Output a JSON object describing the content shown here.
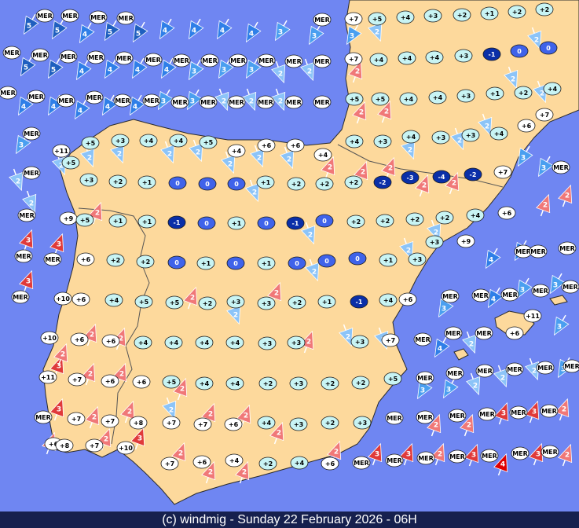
{
  "footer": "(c) windmig - Sunday 22 February 2026 - 06H",
  "markers": [
    "MER",
    "MER",
    "MER",
    "MER",
    "MER",
    "+7",
    "+5",
    "+4",
    "+3",
    "+2",
    "+1",
    "+2",
    "+2",
    "MER",
    "MER",
    "MER",
    "MER",
    "MER",
    "MER",
    "MER",
    "MER",
    "MER",
    "MER",
    "MER",
    "MER",
    "+7",
    "+4",
    "+4",
    "+4",
    "+3",
    "-1",
    "0",
    "0",
    "MER",
    "MER",
    "MER",
    "MER",
    "MER",
    "MER",
    "MER",
    "MER",
    "MER",
    "MER",
    "MER",
    "MER",
    "+5",
    "+5",
    "+4",
    "+4",
    "+3",
    "+1",
    "+2",
    "+4",
    "+7",
    "+6",
    "MER",
    "+11",
    "+5",
    "+3",
    "+4",
    "+4",
    "+5",
    "+4",
    "+6",
    "+6",
    "+4",
    "+4",
    "+3",
    "+4",
    "+3",
    "+3",
    "+4",
    "+5",
    "MER",
    "+3",
    "+2",
    "+1",
    "0",
    "0",
    "0",
    "+1",
    "+2",
    "+2",
    "+2",
    "-2",
    "-3",
    "-4",
    "-2",
    "+7",
    "MER",
    "MER",
    "+9",
    "+5",
    "+1",
    "+1",
    "-1",
    "0",
    "+1",
    "0",
    "-1",
    "0",
    "+2",
    "+2",
    "+2",
    "+2",
    "+4",
    "+6",
    "MER",
    "MER",
    "+6",
    "+2",
    "+2",
    "0",
    "+1",
    "0",
    "+1",
    "0",
    "0",
    "0",
    "+1",
    "+3",
    "+3",
    "+9",
    "MER",
    "MER",
    "MER",
    "MER",
    "+10",
    "+6",
    "+4",
    "+5",
    "+5",
    "+2",
    "+3",
    "+3",
    "+2",
    "+1",
    "-1",
    "+4",
    "+6",
    "MER",
    "MER",
    "MER",
    "MER",
    "MER",
    "+10",
    "+6",
    "+6",
    "+4",
    "+4",
    "+4",
    "+4",
    "+3",
    "+3",
    "+3",
    "+7",
    "MER",
    "MER",
    "MER",
    "+6",
    "+11",
    "+11",
    "+7",
    "+6",
    "+6",
    "+5",
    "+4",
    "+4",
    "+2",
    "+3",
    "+2",
    "+2",
    "+5",
    "MER",
    "MER",
    "MER",
    "MER",
    "MER",
    "MER",
    "MER",
    "+7",
    "+7",
    "+8",
    "+7",
    "+7",
    "+6",
    "+4",
    "+3",
    "+2",
    "+3",
    "MER",
    "MER",
    "MER",
    "MER",
    "MER",
    "MER",
    "+6",
    "+8",
    "+7",
    "+10",
    "+7",
    "+6",
    "+4",
    "+2",
    "+4",
    "+6",
    "MER",
    "MER",
    "MER",
    "MER",
    "MER",
    "MER",
    "MER"
  ],
  "wind_flags": [
    5,
    5,
    4,
    5,
    5,
    4,
    4,
    4,
    4,
    3,
    3,
    3,
    2,
    2,
    5,
    5,
    4,
    4,
    4,
    4,
    3,
    3,
    3,
    2,
    2,
    2,
    2,
    2,
    4,
    4,
    4,
    4,
    4,
    3,
    3,
    2,
    2,
    2,
    2,
    2,
    3,
    2,
    2,
    2,
    2,
    2,
    2,
    2,
    2,
    2,
    2,
    2,
    2,
    2,
    2,
    3,
    3,
    2,
    2,
    2,
    2,
    2,
    2,
    2,
    3,
    3,
    2,
    2,
    2,
    4,
    4,
    3,
    2,
    2,
    2,
    3,
    3,
    4,
    3,
    2,
    2,
    2,
    3,
    2,
    4,
    3,
    2,
    2,
    2,
    2,
    2,
    2,
    3,
    3,
    2,
    2,
    2,
    3,
    3,
    2,
    2,
    2,
    2,
    2,
    2,
    2,
    2,
    3,
    3,
    2,
    2,
    2,
    3,
    2,
    2,
    2,
    2,
    3,
    3,
    2,
    3,
    4,
    3,
    2,
    2,
    2
  ]
}
